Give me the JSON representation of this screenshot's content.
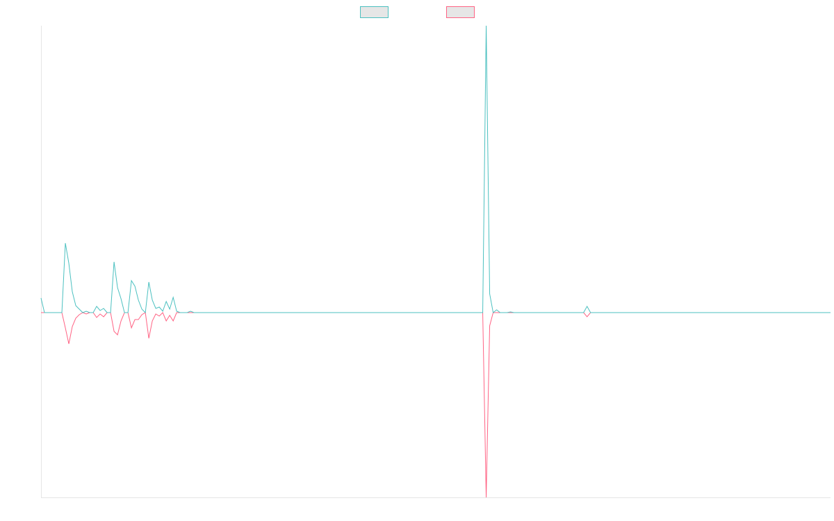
{
  "chart_data": {
    "type": "line",
    "x": [
      0,
      1,
      6,
      7,
      8,
      9,
      10,
      11,
      12,
      13,
      14,
      15,
      16,
      17,
      18,
      19,
      20,
      21,
      22,
      23,
      24,
      25,
      26,
      27,
      28,
      29,
      30,
      31,
      32,
      33,
      34,
      35,
      36,
      37,
      38,
      39,
      40,
      42,
      43,
      44,
      127,
      128,
      129,
      130,
      131,
      132,
      134,
      135,
      136,
      156,
      157,
      158,
      227
    ],
    "xlim": [
      0,
      227
    ],
    "ylim": [
      -266,
      413
    ],
    "legend": "top",
    "series": [
      {
        "color": "#4bc0c0",
        "values": [
          21,
          0,
          0,
          100,
          71,
          30,
          10,
          5,
          0,
          2,
          0,
          0,
          9,
          3,
          6,
          0,
          0,
          73,
          36,
          20,
          0,
          0,
          46,
          38,
          18,
          5,
          0,
          44,
          18,
          6,
          8,
          2,
          16,
          5,
          22,
          2,
          0,
          0,
          2,
          0,
          0,
          413,
          27,
          0,
          4,
          0,
          0,
          1,
          0,
          0,
          9,
          0,
          0
        ]
      },
      {
        "color": "#ff6384",
        "values": [
          0,
          0,
          0,
          -22,
          -45,
          -20,
          -8,
          -3,
          0,
          -2,
          0,
          0,
          -7,
          -2,
          -6,
          0,
          0,
          -27,
          -32,
          -12,
          0,
          0,
          -22,
          -10,
          -10,
          -3,
          0,
          -37,
          -12,
          -2,
          -5,
          0,
          -12,
          -4,
          -12,
          0,
          0,
          0,
          0,
          0,
          0,
          -266,
          -19,
          0,
          0,
          0,
          0,
          0,
          0,
          0,
          -6,
          0,
          0
        ]
      }
    ]
  }
}
